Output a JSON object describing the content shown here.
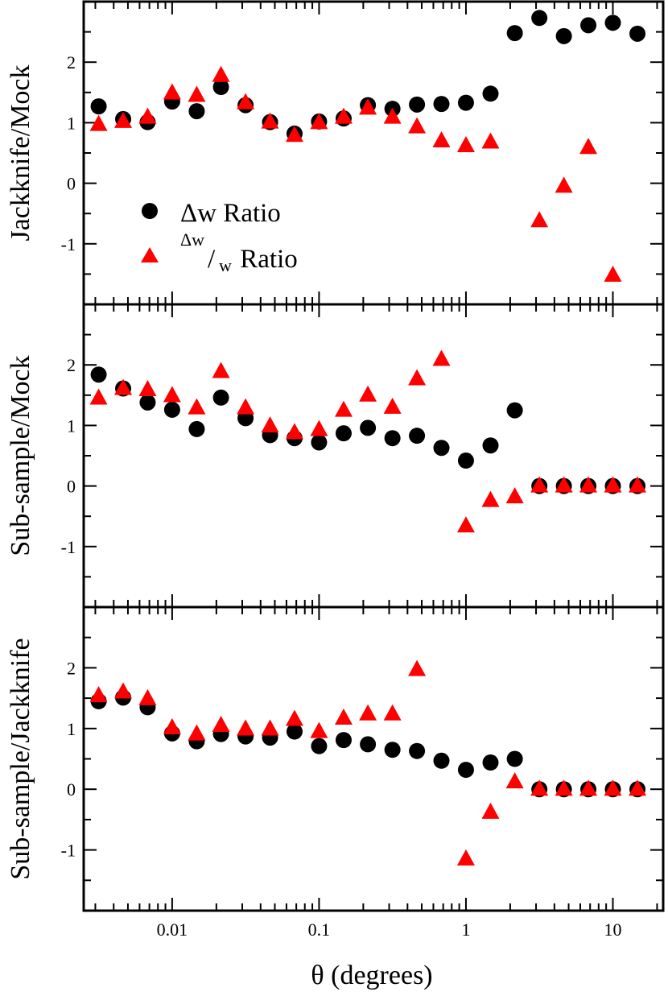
{
  "colors": {
    "circle": "#000000",
    "triangle": "#ff0000",
    "axis": "#000000"
  },
  "chart_data": {
    "type": "scatter",
    "xscale": "log",
    "xlim": [
      0.0025,
      22
    ],
    "xlabel": "θ (degrees)",
    "x_tick_labels": [
      {
        "value": 0.01,
        "label": "0.01"
      },
      {
        "value": 0.1,
        "label": "0.1"
      },
      {
        "value": 1,
        "label": "1"
      },
      {
        "value": 10,
        "label": "10"
      }
    ],
    "x": [
      0.00316,
      0.00464,
      0.00681,
      0.01,
      0.0147,
      0.0215,
      0.0316,
      0.0464,
      0.0681,
      0.1,
      0.147,
      0.215,
      0.316,
      0.464,
      0.681,
      1.0,
      1.47,
      2.15,
      3.16,
      4.64,
      6.81,
      10.0,
      14.7
    ],
    "legend": {
      "circle_label": "Δw Ratio",
      "triangle_num": "Δw",
      "triangle_slash": "/",
      "triangle_den": "w",
      "triangle_suffix": " Ratio"
    },
    "panels": [
      {
        "ylabel": "Jackknife/Mock",
        "ylim": [
          -2,
          3
        ],
        "yticks": [
          {
            "value": 2,
            "label": "2"
          },
          {
            "value": 1,
            "label": "1"
          },
          {
            "value": 0,
            "label": "0"
          },
          {
            "value": -1,
            "label": "-1"
          }
        ],
        "series": [
          {
            "name": "Δw Ratio",
            "marker": "circle",
            "values": [
              1.27,
              1.06,
              1.01,
              1.35,
              1.19,
              1.59,
              1.29,
              1.01,
              0.82,
              1.02,
              1.07,
              1.29,
              1.23,
              1.3,
              1.31,
              1.33,
              1.48,
              2.48,
              2.73,
              2.43,
              2.61,
              2.65,
              2.47
            ]
          },
          {
            "name": "Δw/w Ratio",
            "marker": "triangle",
            "values": [
              0.97,
              1.02,
              1.09,
              1.49,
              1.45,
              1.78,
              1.33,
              1.01,
              0.79,
              1.0,
              1.09,
              1.24,
              1.09,
              0.93,
              0.7,
              0.62,
              0.68,
              null,
              -0.62,
              -0.05,
              0.59,
              -1.52,
              null
            ]
          }
        ]
      },
      {
        "ylabel": "Sub-sample/Mock",
        "ylim": [
          -2,
          3
        ],
        "yticks": [
          {
            "value": 2,
            "label": "2"
          },
          {
            "value": 1,
            "label": "1"
          },
          {
            "value": 0,
            "label": "0"
          },
          {
            "value": -1,
            "label": "-1"
          }
        ],
        "series": [
          {
            "name": "Δw Ratio",
            "marker": "circle",
            "values": [
              1.84,
              1.61,
              1.38,
              1.26,
              0.94,
              1.46,
              1.12,
              0.84,
              0.79,
              0.72,
              0.87,
              0.96,
              0.79,
              0.83,
              0.63,
              0.42,
              0.67,
              1.25,
              0.0,
              0.0,
              0.0,
              0.0,
              0.0
            ]
          },
          {
            "name": "Δw/w Ratio",
            "marker": "triangle",
            "values": [
              1.45,
              1.61,
              1.59,
              1.49,
              1.29,
              1.89,
              1.29,
              0.99,
              0.88,
              0.93,
              1.25,
              1.5,
              1.3,
              1.77,
              2.09,
              -0.66,
              -0.24,
              -0.18,
              0.0,
              0.0,
              0.0,
              0.0,
              0.0
            ]
          }
        ]
      },
      {
        "ylabel": "Sub-sample/Jackknife",
        "ylim": [
          -2,
          3
        ],
        "yticks": [
          {
            "value": 2,
            "label": "2"
          },
          {
            "value": 1,
            "label": "1"
          },
          {
            "value": 0,
            "label": "0"
          },
          {
            "value": -1,
            "label": "-1"
          }
        ],
        "series": [
          {
            "name": "Δw Ratio",
            "marker": "circle",
            "values": [
              1.45,
              1.51,
              1.35,
              0.92,
              0.79,
              0.91,
              0.87,
              0.85,
              0.95,
              0.71,
              0.81,
              0.74,
              0.65,
              0.63,
              0.47,
              0.32,
              0.44,
              0.5,
              0.0,
              0.0,
              0.0,
              0.0,
              0.0
            ]
          },
          {
            "name": "Δw/w Ratio",
            "marker": "triangle",
            "values": [
              1.54,
              1.6,
              1.49,
              1.01,
              0.91,
              1.05,
              0.99,
              0.99,
              1.15,
              0.95,
              1.17,
              1.24,
              1.24,
              1.97,
              null,
              -1.15,
              -0.38,
              0.12,
              0.0,
              0.0,
              0.0,
              0.0,
              0.0
            ]
          }
        ]
      }
    ]
  }
}
